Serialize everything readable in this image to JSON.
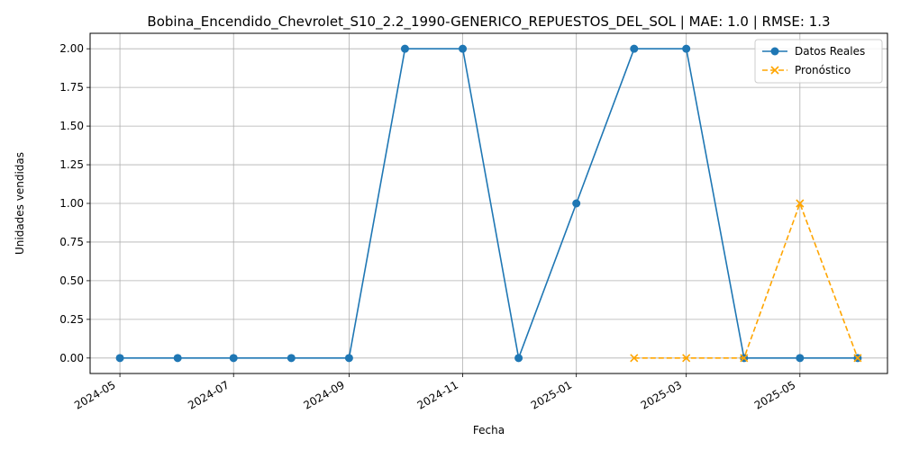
{
  "chart_data": {
    "type": "line",
    "title": "Bobina_Encendido_Chevrolet_S10_2.2_1990-GENERICO_REPUESTOS_DEL_SOL | MAE: 1.0 | RMSE: 1.3",
    "xlabel": "Fecha",
    "ylabel": "Unidades vendidas",
    "x_ticks": [
      "2024-05",
      "2024-07",
      "2024-09",
      "2024-11",
      "2025-01",
      "2025-03",
      "2025-05"
    ],
    "y_ticks": [
      "0.00",
      "0.25",
      "0.50",
      "0.75",
      "1.00",
      "1.25",
      "1.50",
      "1.75",
      "2.00"
    ],
    "xlim": [
      "2024-04-15",
      "2025-06-17"
    ],
    "ylim": [
      -0.1,
      2.1
    ],
    "grid": true,
    "legend_position": "top-right",
    "series": [
      {
        "name": "Datos Reales",
        "color": "#1f77b4",
        "line_style": "solid",
        "marker": "circle",
        "x": [
          "2024-05-01",
          "2024-06-01",
          "2024-07-01",
          "2024-08-01",
          "2024-09-01",
          "2024-10-01",
          "2024-11-01",
          "2024-12-01",
          "2025-01-01",
          "2025-02-01",
          "2025-03-01",
          "2025-04-01",
          "2025-05-01",
          "2025-06-01"
        ],
        "values": [
          0,
          0,
          0,
          0,
          0,
          2,
          2,
          0,
          1,
          2,
          2,
          0,
          0,
          0
        ]
      },
      {
        "name": "Pronóstico",
        "color": "#ffa500",
        "line_style": "dashed",
        "marker": "x",
        "x": [
          "2025-02-01",
          "2025-03-01",
          "2025-04-01",
          "2025-05-01",
          "2025-06-01"
        ],
        "values": [
          0,
          0,
          0,
          1,
          0
        ]
      }
    ]
  }
}
